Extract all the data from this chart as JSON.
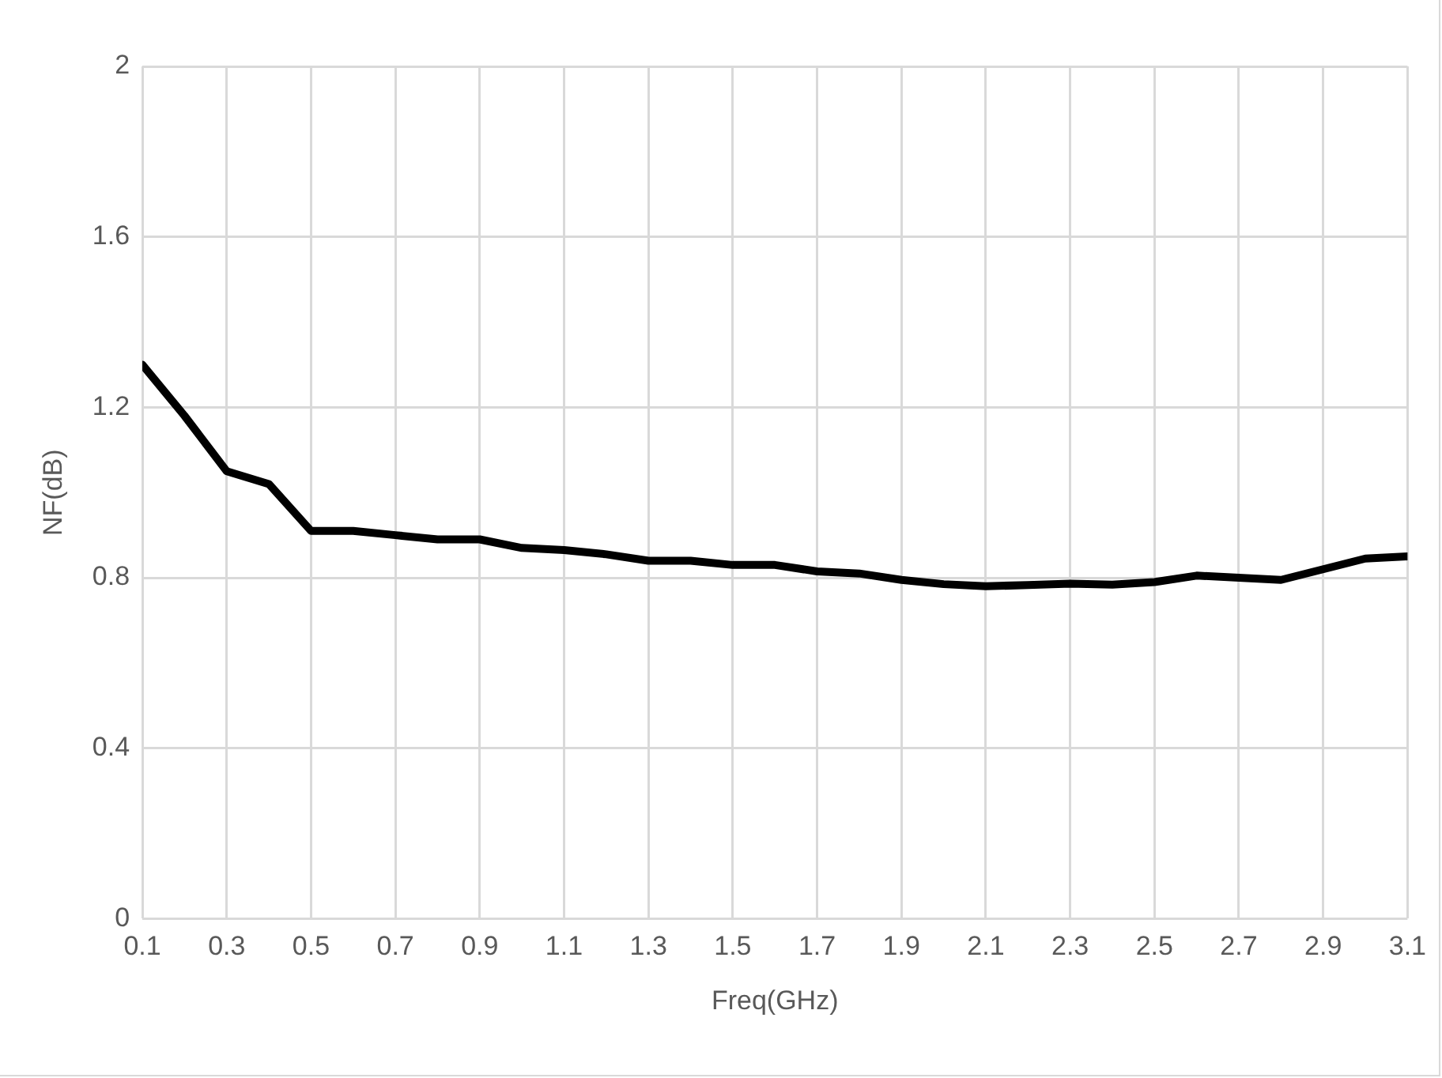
{
  "chart_data": {
    "type": "line",
    "xlabel": "Freq(GHz)",
    "ylabel": "NF(dB)",
    "x": [
      0.1,
      0.2,
      0.3,
      0.4,
      0.5,
      0.6,
      0.7,
      0.8,
      0.9,
      1.0,
      1.1,
      1.2,
      1.3,
      1.4,
      1.5,
      1.6,
      1.7,
      1.8,
      1.9,
      2.0,
      2.1,
      2.2,
      2.3,
      2.4,
      2.5,
      2.6,
      2.7,
      2.8,
      2.9,
      3.0,
      3.1
    ],
    "series": [
      {
        "color": "#000000",
        "values": [
          1.3,
          1.18,
          1.05,
          1.02,
          0.91,
          0.91,
          0.9,
          0.89,
          0.89,
          0.87,
          0.865,
          0.855,
          0.84,
          0.84,
          0.83,
          0.83,
          0.815,
          0.81,
          0.795,
          0.785,
          0.78,
          0.783,
          0.786,
          0.784,
          0.79,
          0.805,
          0.8,
          0.795,
          0.82,
          0.845,
          0.85
        ]
      }
    ],
    "xlim": [
      0.1,
      3.1
    ],
    "xticks": [
      0.1,
      0.3,
      0.5,
      0.7,
      0.9,
      1.1,
      1.3,
      1.5,
      1.7,
      1.9,
      2.1,
      2.3,
      2.5,
      2.7,
      2.9,
      3.1
    ],
    "ylim": [
      0,
      2
    ],
    "yticks": [
      0,
      0.4,
      0.8,
      1.2,
      1.6,
      2
    ],
    "grid": true,
    "legend": false,
    "marker": "none",
    "line_style": "solid"
  }
}
